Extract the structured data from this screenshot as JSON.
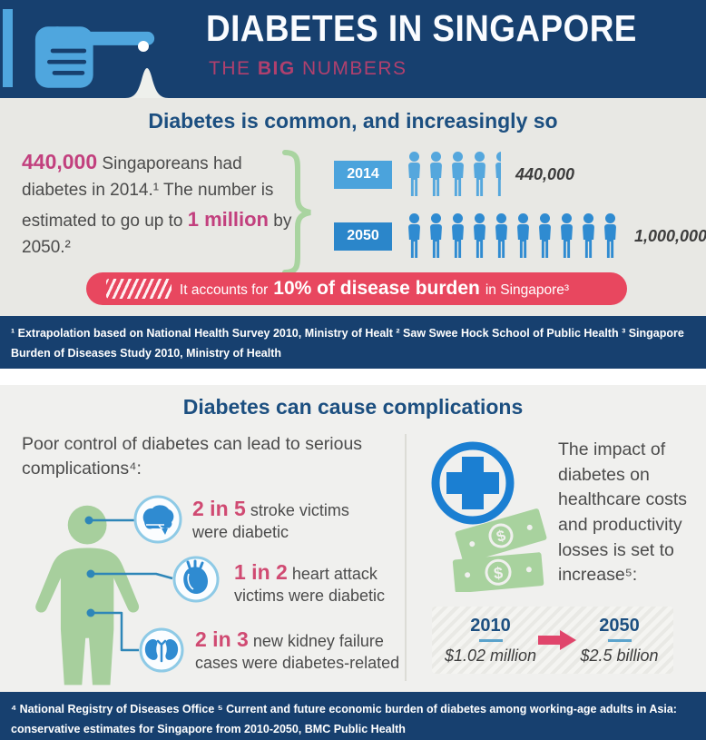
{
  "colors": {
    "navy": "#17406f",
    "heading_blue": "#1c4f80",
    "subtitle_pink": "#b0406e",
    "stat_pink": "#c2407e",
    "banner_pink": "#e8475f",
    "ratio_pink": "#d04a72",
    "pictogram_2014_blue": "#55a7dd",
    "pictogram_2050_blue": "#2f8bd1",
    "cross_blue": "#1b7fd2",
    "person_green": "#a7cf9d",
    "money_green": "#a8d29e",
    "body_text_gray": "#4b4b4b"
  },
  "icons": {
    "dollar": "$"
  },
  "header": {
    "title": "DIABETES IN SINGAPORE",
    "subtitle": {
      "pre": "THE ",
      "bold": "BIG",
      "post": " NUMBERS"
    }
  },
  "section1": {
    "heading": "Diabetes is common, and increasingly so",
    "intro": {
      "stat1": "440,000",
      "text1": " Singaporeans had diabetes in 2014.¹ The number is estimated to go up to ",
      "stat2": "1 million",
      "text2": " by 2050.²"
    },
    "rows": [
      {
        "year": "2014",
        "value_label": "440,000",
        "icons_full": 4,
        "icons_half": 1,
        "icon_color": "#55a7dd",
        "label_bg": "#4ba3dc"
      },
      {
        "year": "2050",
        "value_label": "1,000,000",
        "icons_full": 10,
        "icons_half": 0,
        "icon_color": "#2f8bd1",
        "label_bg": "#2b86ca"
      }
    ],
    "banner": {
      "pre": "It accounts for",
      "highlight": "10% of disease burden",
      "post": "in Singapore³"
    },
    "footnote": "¹ Extrapolation based on National Health Survey 2010, Ministry of Healt  ² Saw Swee Hock School of Public Health ³ Singapore Burden of Diseases Study 2010, Ministry of Health"
  },
  "section2": {
    "heading": "Diabetes can cause complications",
    "left": {
      "intro": "Poor control of diabetes can lead to serious complications⁴:",
      "items": [
        {
          "ratio": "2 in 5",
          "text": " stroke victims were diabetic",
          "icon": "brain-icon"
        },
        {
          "ratio": "1 in 2",
          "text": " heart attack victims were diabetic",
          "icon": "heart-icon"
        },
        {
          "ratio": "2 in 3",
          "text": " new kidney failure cases were diabetes-related",
          "icon": "kidneys-icon"
        }
      ]
    },
    "right": {
      "text": "The impact of diabetes on healthcare costs and productivity losses is set to increase⁵:",
      "comparison": {
        "from_year": "2010",
        "from_value": "$1.02 million",
        "to_year": "2050",
        "to_value": "$2.5 billion"
      }
    },
    "footnote": "⁴ National Registry of Diseases Office ⁵ Current and future economic burden of diabetes among working-age adults in Asia: conservative estimates for Singapore from 2010-2050, BMC Public Health"
  },
  "chart_data": [
    {
      "type": "pictogram",
      "title": "Diabetes is common, and increasingly so",
      "categories": [
        "2014",
        "2050"
      ],
      "values": [
        440000,
        1000000
      ],
      "value_labels": [
        "440,000",
        "1,000,000"
      ],
      "people_per_icon": 100000,
      "icon": "person"
    },
    {
      "type": "comparison",
      "title": "Impact of diabetes on healthcare costs and productivity losses",
      "categories": [
        "2010",
        "2050"
      ],
      "values": [
        1020000,
        2500000000
      ],
      "value_labels": [
        "$1.02 million",
        "$2.5 billion"
      ]
    }
  ]
}
